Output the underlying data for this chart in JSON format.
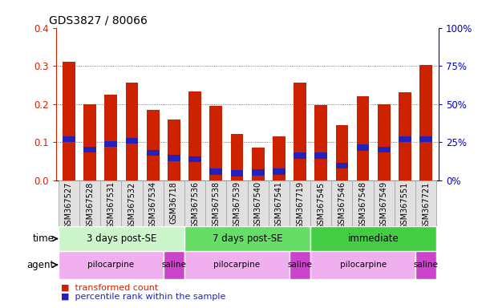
{
  "title": "GDS3827 / 80066",
  "samples": [
    "GSM367527",
    "GSM367528",
    "GSM367531",
    "GSM367532",
    "GSM367534",
    "GSM36718",
    "GSM367536",
    "GSM367538",
    "GSM367539",
    "GSM367540",
    "GSM367541",
    "GSM367719",
    "GSM367545",
    "GSM367546",
    "GSM367548",
    "GSM367549",
    "GSM367551",
    "GSM367721"
  ],
  "red_values": [
    0.31,
    0.2,
    0.225,
    0.255,
    0.185,
    0.16,
    0.232,
    0.195,
    0.122,
    0.085,
    0.115,
    0.255,
    0.197,
    0.145,
    0.22,
    0.2,
    0.23,
    0.302
  ],
  "blue_values": [
    0.108,
    0.08,
    0.095,
    0.103,
    0.072,
    0.058,
    0.055,
    0.022,
    0.018,
    0.02,
    0.022,
    0.065,
    0.065,
    0.038,
    0.085,
    0.08,
    0.108,
    0.108
  ],
  "ylim": [
    0,
    0.4
  ],
  "y2lim": [
    0,
    100
  ],
  "yticks": [
    0,
    0.1,
    0.2,
    0.3,
    0.4
  ],
  "y2ticks": [
    0,
    25,
    50,
    75,
    100
  ],
  "time_groups": [
    {
      "label": "3 days post-SE",
      "start": 0,
      "end": 6,
      "color": "#ccf5cc"
    },
    {
      "label": "7 days post-SE",
      "start": 6,
      "end": 12,
      "color": "#66dd66"
    },
    {
      "label": "immediate",
      "start": 12,
      "end": 18,
      "color": "#44cc44"
    }
  ],
  "agent_groups": [
    {
      "label": "pilocarpine",
      "start": 0,
      "end": 5,
      "color": "#f0b0f0"
    },
    {
      "label": "saline",
      "start": 5,
      "end": 6,
      "color": "#cc44cc"
    },
    {
      "label": "pilocarpine",
      "start": 6,
      "end": 11,
      "color": "#f0b0f0"
    },
    {
      "label": "saline",
      "start": 11,
      "end": 12,
      "color": "#cc44cc"
    },
    {
      "label": "pilocarpine",
      "start": 12,
      "end": 17,
      "color": "#f0b0f0"
    },
    {
      "label": "saline",
      "start": 17,
      "end": 18,
      "color": "#cc44cc"
    }
  ],
  "bar_color": "#cc2200",
  "blue_color": "#2222bb",
  "grid_color": "#555555",
  "tick_label_color_left": "#cc2200",
  "tick_label_color_right": "#0000cc",
  "blue_bar_height": 0.016,
  "bar_width": 0.6
}
